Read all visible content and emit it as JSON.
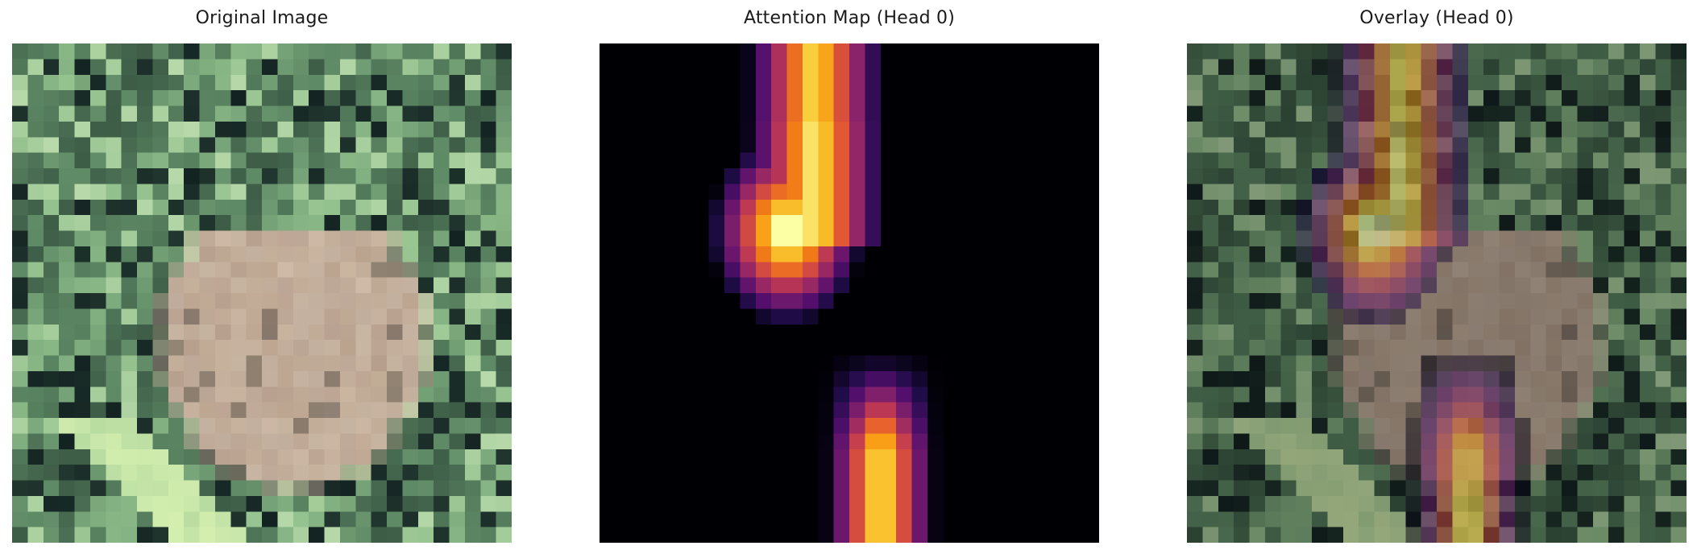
{
  "panels": [
    {
      "title": "Original Image",
      "type": "photo"
    },
    {
      "title": "Attention Map (Head 0)",
      "type": "attention"
    },
    {
      "title": "Overlay (Head 0)",
      "type": "overlay"
    }
  ],
  "image_subject": "pixelated low-resolution photo of a frog among green leaves",
  "colormap": "inferno",
  "palette": {
    "foliage_dark": "#2f4a3a",
    "foliage_mid": "#5f8a66",
    "foliage_light": "#93c18d",
    "frog_skin": "#c4a895",
    "attention_low": "#000004",
    "attention_high": "#fcffa4"
  }
}
